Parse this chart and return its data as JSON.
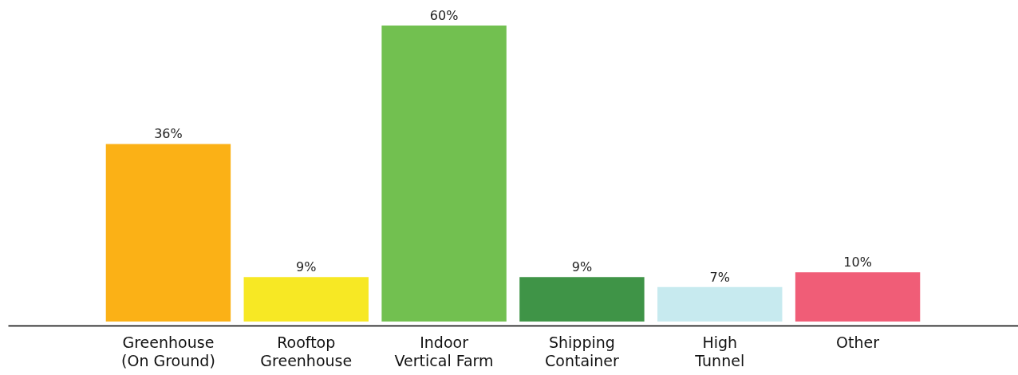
{
  "chart_data": {
    "type": "bar",
    "categories": [
      "Greenhouse\n(On Ground)",
      "Rooftop\nGreenhouse",
      "Indoor\nVertical Farm",
      "Shipping\nContainer",
      "High\nTunnel",
      "Other"
    ],
    "values": [
      36,
      9,
      60,
      9,
      7,
      10
    ],
    "value_labels": [
      "36%",
      "9%",
      "60%",
      "9%",
      "7%",
      "10%"
    ],
    "colors": [
      "#fbb116",
      "#f7e824",
      "#72c050",
      "#3f9447",
      "#c7eaef",
      "#f05d77"
    ],
    "tick_labels": "x"
  }
}
